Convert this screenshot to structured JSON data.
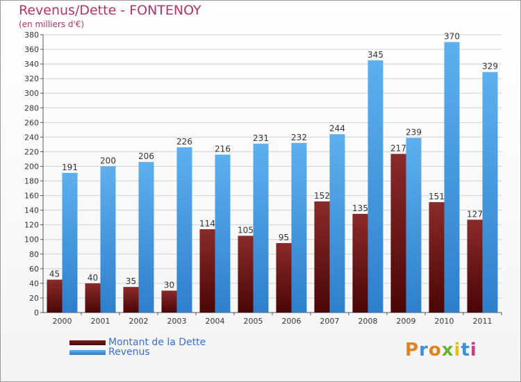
{
  "chart_data": {
    "type": "bar",
    "title": "Revenus/Dette - FONTENOY",
    "subtitle": "(en milliers d'€)",
    "categories": [
      "2000",
      "2001",
      "2002",
      "2003",
      "2004",
      "2005",
      "2006",
      "2007",
      "2008",
      "2009",
      "2010",
      "2011"
    ],
    "series": [
      {
        "name": "Montant de la Dette",
        "color": "#7a1a1a",
        "values": [
          45,
          40,
          35,
          30,
          114,
          105,
          95,
          152,
          135,
          217,
          151,
          127
        ]
      },
      {
        "name": "Revenus",
        "color": "#3c93de",
        "values": [
          191,
          200,
          206,
          226,
          216,
          231,
          232,
          244,
          345,
          239,
          370,
          329
        ]
      }
    ],
    "ylim": [
      0,
      380
    ],
    "yticks": [
      0,
      20,
      40,
      60,
      80,
      100,
      120,
      140,
      160,
      180,
      200,
      220,
      240,
      260,
      280,
      300,
      320,
      340,
      360,
      380
    ],
    "grid": true,
    "legend_position": "bottom-left"
  },
  "logo": {
    "letters": [
      "P",
      "r",
      "o",
      "x",
      "i",
      "t",
      "i"
    ],
    "colors": [
      "#e0821e",
      "#3c8fd8",
      "#e0821e",
      "#6ab52e",
      "#e0c01e",
      "#3c8fd8",
      "#d43a8a"
    ]
  }
}
